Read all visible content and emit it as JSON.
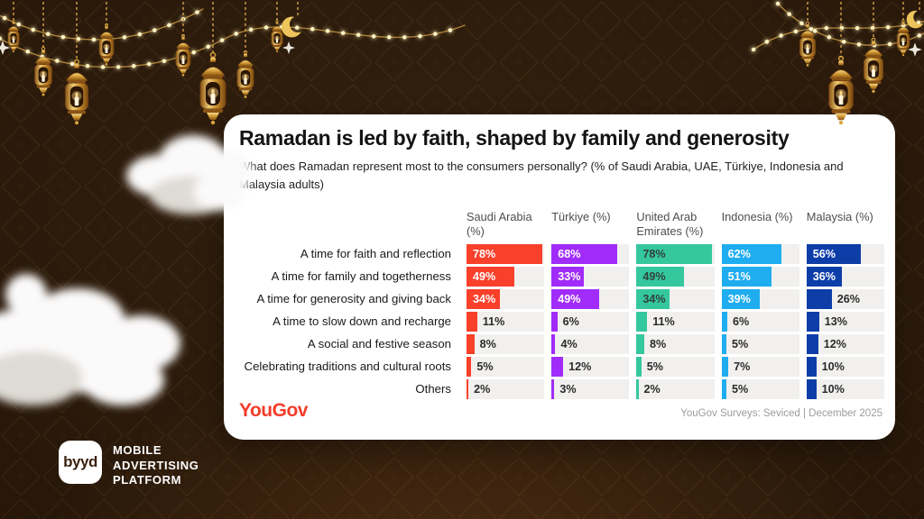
{
  "card": {
    "title": "Ramadan is led by faith, shaped by family and generosity",
    "subtitle": "What does Ramadan represent most to the consumers personally? (% of Saudi Arabia, UAE, Türkiye, Indonesia and Malaysia adults)",
    "yougov_logo": "YouGov",
    "source": "YouGov Surveys: Seviced | December 2025"
  },
  "chart_data": {
    "type": "bar",
    "orientation": "horizontal",
    "axis_max": 80,
    "value_suffix": "%",
    "inside_threshold": 30,
    "track_color": "#f1f0ee",
    "label_color_outside": "#2b2b2b",
    "categories": [
      "A time for faith and reflection",
      "A time for family and togetherness",
      "A time for generosity and giving back",
      "A time to slow down and recharge",
      "A social and festive season",
      "Celebrating traditions and cultural roots",
      "Others"
    ],
    "series": [
      {
        "name": "Saudi Arabia (%)",
        "color": "#f8402b",
        "label_color_inside": "#ffffff",
        "values": [
          78,
          49,
          34,
          11,
          8,
          5,
          2
        ]
      },
      {
        "name": "Türkiye (%)",
        "color": "#a12cf9",
        "label_color_inside": "#ffffff",
        "values": [
          68,
          33,
          49,
          6,
          4,
          12,
          3
        ]
      },
      {
        "name": "United Arab Emirates (%)",
        "color": "#35c79e",
        "label_color_inside": "#30413b",
        "values": [
          78,
          49,
          34,
          11,
          8,
          5,
          2
        ]
      },
      {
        "name": "Indonesia (%)",
        "color": "#1fadef",
        "label_color_inside": "#ffffff",
        "values": [
          62,
          51,
          39,
          6,
          5,
          7,
          5
        ]
      },
      {
        "name": "Malaysia (%)",
        "color": "#0d3ea8",
        "label_color_inside": "#ffffff",
        "values": [
          56,
          36,
          26,
          13,
          12,
          10,
          10
        ]
      }
    ]
  },
  "branding": {
    "logo_text": "byyd",
    "tagline": [
      "MOBILE",
      "ADVERTISING",
      "PLATFORM"
    ]
  },
  "colors": {
    "yougov_red": "#f43c2a",
    "card_bg": "#ffffff",
    "background": "#2a1a0c",
    "gold": "#d9a43e"
  }
}
